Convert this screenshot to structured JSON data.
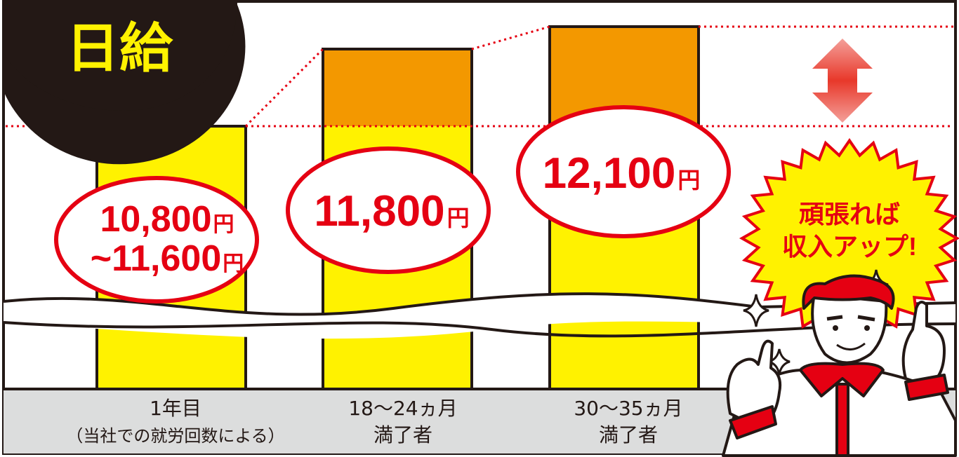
{
  "title": "日給",
  "chart_data": {
    "type": "bar",
    "categories": [
      {
        "line1": "1年目",
        "line2": "（当社での就労回数による）"
      },
      {
        "line1": "18〜24ヵ月",
        "line2": "満了者"
      },
      {
        "line1": "30〜35ヵ月",
        "line2": "満了者"
      }
    ],
    "values": [
      10800,
      11800,
      12100
    ],
    "value_labels": [
      {
        "line1": "10,800",
        "unit1": "円",
        "line2": "~11,600",
        "unit2": "円"
      },
      {
        "line1": "11,800",
        "unit1": "円"
      },
      {
        "line1": "12,100",
        "unit1": "円"
      }
    ],
    "axis_break": true,
    "ylim": [
      0,
      12500
    ],
    "grid": false
  },
  "callout": {
    "line1": "頑張れば",
    "line2": "収入アップ!"
  },
  "colors": {
    "bar_base": "#fff200",
    "bar_increase": "#f39800",
    "accent_red": "#e50012",
    "footer_bg": "#dcdddd",
    "title_badge": "#231815",
    "title_text": "#fff200"
  }
}
